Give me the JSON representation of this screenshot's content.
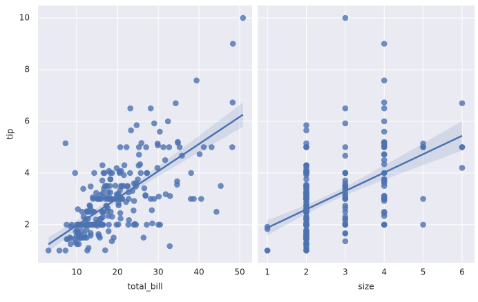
{
  "chart_data": [
    {
      "type": "scatter",
      "x_label": "total_bill",
      "y_label": "tip",
      "color": "#4c72b0",
      "xlim": [
        0.5,
        53.05
      ],
      "ylim": [
        0.53,
        10.48
      ],
      "xticks": [
        10,
        20,
        30,
        40,
        50
      ],
      "yticks": [
        2,
        4,
        6,
        8,
        10
      ],
      "grid": true,
      "fit_line": true,
      "x": [
        16.99,
        10.34,
        21.01,
        23.68,
        24.59,
        25.29,
        8.77,
        26.88,
        15.04,
        14.78,
        10.27,
        35.26,
        15.42,
        18.43,
        14.83,
        21.58,
        10.33,
        16.29,
        16.97,
        20.65,
        17.92,
        20.29,
        15.77,
        39.42,
        19.82,
        17.81,
        13.37,
        12.69,
        21.7,
        19.65,
        9.55,
        18.35,
        15.06,
        20.69,
        17.78,
        24.06,
        16.31,
        16.93,
        18.69,
        31.27,
        16.04,
        17.46,
        13.94,
        9.68,
        30.4,
        18.29,
        22.23,
        32.4,
        28.55,
        18.04,
        12.54,
        10.29,
        34.81,
        9.94,
        25.56,
        19.49,
        38.01,
        26.41,
        11.24,
        48.27,
        20.29,
        13.81,
        11.02,
        18.29,
        17.59,
        20.08,
        16.45,
        3.07,
        20.23,
        15.01,
        12.02,
        17.07,
        26.86,
        25.28,
        14.73,
        10.51,
        17.92,
        27.2,
        22.76,
        17.29,
        19.44,
        16.66,
        10.07,
        32.68,
        15.98,
        34.83,
        13.03,
        18.28,
        24.71,
        21.16,
        28.97,
        22.49,
        5.75,
        16.32,
        22.75,
        40.17,
        27.28,
        12.03,
        21.01,
        12.46,
        11.35,
        15.38,
        44.3,
        22.42,
        20.92,
        15.36,
        20.49,
        25.21,
        18.24,
        14.31,
        14.0,
        7.25,
        38.07,
        23.95,
        25.71,
        17.31,
        29.93,
        10.65,
        12.43,
        24.08,
        11.69,
        13.42,
        14.26,
        15.95,
        12.48,
        29.8,
        8.52,
        14.52,
        11.38,
        22.82,
        19.08,
        20.27,
        11.17,
        12.26,
        18.26,
        8.51,
        10.33,
        14.15,
        16.0,
        13.16,
        17.47,
        34.3,
        41.19,
        27.05,
        16.43,
        8.35,
        18.64,
        11.87,
        9.78,
        7.51,
        14.07,
        13.13,
        17.26,
        24.55,
        19.77,
        29.85,
        48.17,
        25.0,
        13.39,
        16.49,
        21.5,
        12.66,
        16.21,
        13.81,
        17.51,
        24.52,
        20.76,
        31.71,
        10.59,
        10.63,
        50.81,
        15.81,
        7.25,
        31.85,
        16.82,
        32.9,
        17.89,
        14.48,
        9.6,
        34.63,
        34.65,
        23.33,
        45.35,
        23.17,
        40.55,
        20.69,
        20.9,
        30.46,
        18.15,
        23.1,
        15.69,
        19.81,
        28.44,
        15.48,
        16.58,
        7.56,
        10.34,
        43.11,
        13.0,
        13.51,
        18.71,
        12.74,
        13.0,
        16.4,
        20.53,
        16.47,
        26.59,
        38.73,
        24.27,
        12.76,
        30.06,
        25.89,
        48.33,
        13.27,
        28.17,
        12.9,
        28.15,
        11.59,
        7.74,
        30.14,
        12.16,
        13.42,
        8.58,
        15.98,
        13.42,
        16.27,
        10.09,
        20.45,
        13.28,
        22.12,
        24.01,
        15.69,
        11.61,
        10.77,
        15.53,
        10.07,
        12.6,
        32.83,
        35.83,
        29.03,
        27.18,
        22.67,
        17.82,
        18.78
      ],
      "values": [
        1.01,
        1.66,
        3.5,
        3.31,
        3.61,
        4.71,
        2.0,
        3.12,
        1.96,
        3.23,
        1.71,
        5.0,
        1.57,
        3.0,
        3.02,
        3.92,
        1.67,
        3.71,
        3.5,
        3.35,
        4.08,
        2.75,
        2.23,
        7.58,
        3.18,
        2.34,
        2.0,
        2.0,
        4.3,
        3.0,
        1.45,
        2.5,
        3.0,
        2.45,
        3.27,
        3.6,
        2.0,
        3.07,
        2.31,
        5.0,
        2.24,
        2.54,
        3.06,
        1.32,
        5.6,
        3.0,
        5.0,
        6.0,
        2.05,
        3.0,
        2.5,
        2.6,
        5.2,
        1.56,
        4.34,
        3.51,
        3.0,
        1.5,
        1.76,
        6.73,
        3.21,
        2.0,
        1.98,
        3.76,
        2.64,
        3.15,
        2.47,
        1.0,
        2.01,
        2.09,
        1.97,
        3.0,
        3.14,
        5.0,
        2.2,
        1.25,
        3.08,
        4.0,
        3.0,
        2.71,
        3.0,
        3.4,
        1.83,
        5.0,
        2.03,
        5.17,
        2.0,
        4.0,
        5.85,
        3.0,
        3.0,
        3.5,
        1.0,
        4.3,
        3.25,
        4.73,
        4.0,
        1.5,
        3.0,
        1.5,
        2.5,
        3.0,
        2.5,
        3.48,
        4.08,
        1.64,
        4.06,
        4.29,
        3.76,
        4.0,
        3.0,
        1.0,
        4.0,
        2.55,
        4.0,
        3.5,
        5.07,
        1.5,
        1.8,
        2.92,
        2.31,
        1.68,
        2.5,
        2.0,
        2.52,
        4.2,
        1.48,
        2.0,
        2.0,
        2.18,
        1.5,
        2.83,
        1.5,
        2.0,
        3.25,
        1.25,
        2.0,
        2.0,
        2.0,
        2.75,
        3.5,
        6.7,
        5.0,
        5.0,
        2.3,
        1.5,
        1.36,
        1.63,
        1.73,
        2.0,
        2.5,
        2.0,
        2.74,
        2.0,
        2.0,
        5.14,
        5.0,
        3.75,
        2.61,
        2.0,
        3.5,
        2.5,
        2.0,
        2.0,
        3.0,
        3.48,
        2.24,
        4.5,
        1.61,
        2.0,
        10.0,
        3.16,
        5.15,
        3.18,
        4.0,
        3.11,
        2.0,
        2.0,
        4.0,
        3.55,
        3.68,
        5.65,
        3.5,
        6.5,
        3.0,
        5.0,
        3.5,
        2.0,
        3.5,
        4.0,
        1.5,
        4.19,
        2.56,
        2.02,
        4.0,
        1.44,
        2.0,
        5.0,
        2.0,
        2.0,
        4.0,
        2.01,
        2.0,
        2.5,
        4.0,
        3.23,
        3.41,
        3.0,
        2.03,
        2.23,
        2.0,
        5.16,
        9.0,
        2.5,
        6.5,
        1.1,
        3.0,
        1.5,
        1.44,
        3.09,
        2.2,
        3.48,
        1.92,
        3.0,
        1.58,
        2.5,
        2.0,
        3.0,
        2.72,
        2.88,
        2.0,
        3.0,
        3.39,
        1.47,
        3.0,
        1.25,
        1.0,
        1.17,
        4.67,
        5.92,
        2.0,
        2.0,
        1.75,
        3.0
      ]
    },
    {
      "type": "scatter",
      "x_label": "size",
      "color": "#4c72b0",
      "xlim": [
        0.75,
        6.32
      ],
      "ylim": [
        0.53,
        10.48
      ],
      "xticks": [
        1,
        2,
        3,
        4,
        5,
        6
      ],
      "yticks": [
        2,
        4,
        6,
        8,
        10
      ],
      "grid": true,
      "fit_line": true,
      "x": [
        2,
        3,
        3,
        2,
        4,
        4,
        2,
        4,
        2,
        2,
        2,
        4,
        2,
        4,
        2,
        2,
        3,
        3,
        3,
        3,
        2,
        2,
        2,
        4,
        2,
        4,
        2,
        2,
        2,
        2,
        2,
        4,
        2,
        4,
        2,
        3,
        3,
        3,
        3,
        3,
        3,
        2,
        2,
        2,
        4,
        2,
        2,
        4,
        3,
        2,
        2,
        2,
        4,
        2,
        4,
        2,
        4,
        2,
        2,
        4,
        2,
        2,
        2,
        4,
        3,
        3,
        2,
        1,
        2,
        2,
        2,
        3,
        2,
        2,
        2,
        2,
        2,
        4,
        2,
        2,
        2,
        2,
        1,
        2,
        2,
        4,
        2,
        2,
        2,
        2,
        2,
        2,
        2,
        2,
        2,
        4,
        2,
        2,
        2,
        2,
        2,
        2,
        3,
        2,
        2,
        2,
        2,
        2,
        2,
        2,
        2,
        1,
        3,
        2,
        3,
        2,
        4,
        2,
        2,
        4,
        2,
        2,
        2,
        2,
        2,
        6,
        2,
        2,
        2,
        3,
        2,
        2,
        2,
        2,
        2,
        2,
        2,
        2,
        2,
        2,
        2,
        6,
        5,
        6,
        2,
        2,
        3,
        2,
        2,
        2,
        2,
        2,
        3,
        4,
        4,
        5,
        6,
        4,
        2,
        4,
        4,
        2,
        3,
        2,
        2,
        3,
        2,
        4,
        2,
        2,
        3,
        2,
        2,
        2,
        2,
        2,
        2,
        2,
        2,
        2,
        4,
        2,
        3,
        4,
        2,
        5,
        3,
        5,
        3,
        3,
        2,
        2,
        2,
        2,
        2,
        2,
        2,
        4,
        2,
        2,
        3,
        2,
        2,
        2,
        4,
        3,
        3,
        4,
        2,
        2,
        3,
        4,
        4,
        2,
        3,
        2,
        5,
        2,
        2,
        4,
        2,
        2,
        1,
        3,
        2,
        2,
        2,
        4,
        2,
        2,
        4,
        3,
        2,
        2,
        2,
        2,
        2,
        2,
        3,
        3,
        2,
        2,
        2,
        2
      ],
      "values": [
        1.01,
        1.66,
        3.5,
        3.31,
        3.61,
        4.71,
        2.0,
        3.12,
        1.96,
        3.23,
        1.71,
        5.0,
        1.57,
        3.0,
        3.02,
        3.92,
        1.67,
        3.71,
        3.5,
        3.35,
        4.08,
        2.75,
        2.23,
        7.58,
        3.18,
        2.34,
        2.0,
        2.0,
        4.3,
        3.0,
        1.45,
        2.5,
        3.0,
        2.45,
        3.27,
        3.6,
        2.0,
        3.07,
        2.31,
        5.0,
        2.24,
        2.54,
        3.06,
        1.32,
        5.6,
        3.0,
        5.0,
        6.0,
        2.05,
        3.0,
        2.5,
        2.6,
        5.2,
        1.56,
        4.34,
        3.51,
        3.0,
        1.5,
        1.76,
        6.73,
        3.21,
        2.0,
        1.98,
        3.76,
        2.64,
        3.15,
        2.47,
        1.0,
        2.01,
        2.09,
        1.97,
        3.0,
        3.14,
        5.0,
        2.2,
        1.25,
        3.08,
        4.0,
        3.0,
        2.71,
        3.0,
        3.4,
        1.83,
        5.0,
        2.03,
        5.17,
        2.0,
        4.0,
        5.85,
        3.0,
        3.0,
        3.5,
        1.0,
        4.3,
        3.25,
        4.73,
        4.0,
        1.5,
        3.0,
        1.5,
        2.5,
        3.0,
        2.5,
        3.48,
        4.08,
        1.64,
        4.06,
        4.29,
        3.76,
        4.0,
        3.0,
        1.0,
        4.0,
        2.55,
        4.0,
        3.5,
        5.07,
        1.5,
        1.8,
        2.92,
        2.31,
        1.68,
        2.5,
        2.0,
        2.52,
        4.2,
        1.48,
        2.0,
        2.0,
        2.18,
        1.5,
        2.83,
        1.5,
        2.0,
        3.25,
        1.25,
        2.0,
        2.0,
        2.0,
        2.75,
        3.5,
        6.7,
        5.0,
        5.0,
        2.3,
        1.5,
        1.36,
        1.63,
        1.73,
        2.0,
        2.5,
        2.0,
        2.74,
        2.0,
        2.0,
        5.14,
        5.0,
        3.75,
        2.61,
        2.0,
        3.5,
        2.5,
        2.0,
        2.0,
        3.0,
        3.48,
        2.24,
        4.5,
        1.61,
        2.0,
        10.0,
        3.16,
        5.15,
        3.18,
        4.0,
        3.11,
        2.0,
        2.0,
        4.0,
        3.55,
        3.68,
        5.65,
        3.5,
        6.5,
        3.0,
        5.0,
        3.5,
        2.0,
        3.5,
        4.0,
        1.5,
        4.19,
        2.56,
        2.02,
        4.0,
        1.44,
        2.0,
        5.0,
        2.0,
        2.0,
        4.0,
        2.01,
        2.0,
        2.5,
        4.0,
        3.23,
        3.41,
        3.0,
        2.03,
        2.23,
        2.0,
        5.16,
        9.0,
        2.5,
        6.5,
        1.1,
        3.0,
        1.5,
        1.44,
        3.09,
        2.2,
        3.48,
        1.92,
        3.0,
        1.58,
        2.5,
        2.0,
        3.0,
        2.72,
        2.88,
        2.0,
        3.0,
        3.39,
        1.47,
        3.0,
        1.25,
        1.0,
        1.17,
        4.67,
        5.92,
        2.0,
        2.0,
        1.75,
        3.0
      ]
    }
  ]
}
